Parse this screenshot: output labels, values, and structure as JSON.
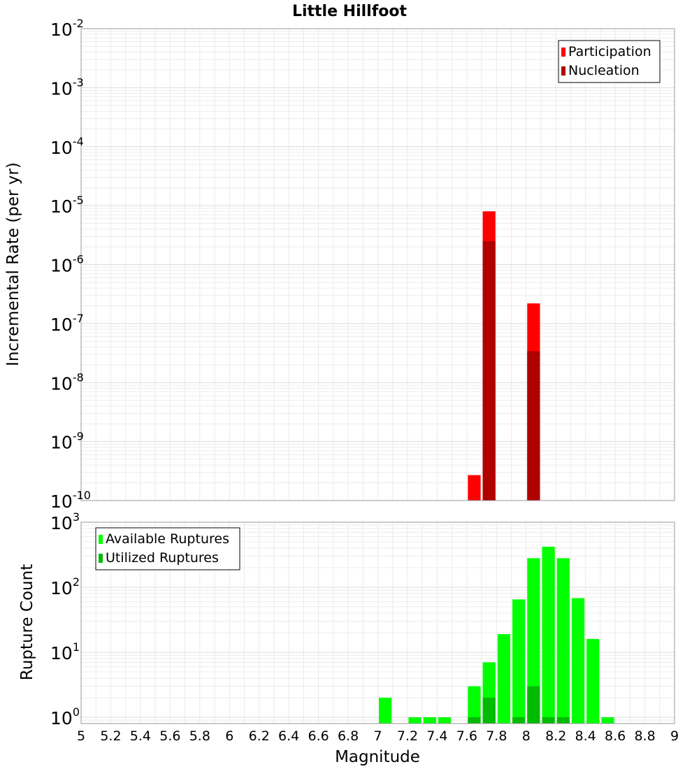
{
  "title": "Little Hillfoot",
  "chart_data": [
    {
      "type": "bar",
      "title": "Little Hillfoot",
      "xlabel": "Magnitude",
      "ylabel": "Incremental Rate (per yr)",
      "yscale": "log",
      "ylim": [
        1e-10,
        0.01
      ],
      "xlim": [
        5,
        9
      ],
      "bin_width": 0.1,
      "grid": true,
      "legend_position": "top-right",
      "y_ticks": [
        {
          "base": "10",
          "exp": "-2"
        },
        {
          "base": "10",
          "exp": "-3"
        },
        {
          "base": "10",
          "exp": "-4"
        },
        {
          "base": "10",
          "exp": "-5"
        },
        {
          "base": "10",
          "exp": "-6"
        },
        {
          "base": "10",
          "exp": "-7"
        },
        {
          "base": "10",
          "exp": "-8"
        },
        {
          "base": "10",
          "exp": "-9"
        },
        {
          "base": "10",
          "exp": "-10"
        }
      ],
      "series": [
        {
          "name": "Participation",
          "color": "#ff0000",
          "x": [
            7.65,
            7.75,
            8.05
          ],
          "values": [
            2.7e-10,
            8e-06,
            2.2e-07
          ]
        },
        {
          "name": "Nucleation",
          "color": "#b00000",
          "x": [
            7.75,
            8.05
          ],
          "values": [
            2.5e-06,
            3.4e-08
          ]
        }
      ]
    },
    {
      "type": "bar",
      "xlabel": "Magnitude",
      "ylabel": "Rupture Count",
      "yscale": "log",
      "ylim": [
        0.8,
        1000
      ],
      "xlim": [
        5,
        9
      ],
      "bin_width": 0.1,
      "grid": true,
      "legend_position": "top-left",
      "x_ticks": [
        "5",
        "5.2",
        "5.4",
        "5.6",
        "5.8",
        "6",
        "6.2",
        "6.4",
        "6.6",
        "6.8",
        "7",
        "7.2",
        "7.4",
        "7.6",
        "7.8",
        "8",
        "8.2",
        "8.4",
        "8.6",
        "8.8",
        "9"
      ],
      "y_ticks": [
        {
          "base": "10",
          "exp": "3"
        },
        {
          "base": "10",
          "exp": "2"
        },
        {
          "base": "10",
          "exp": "1"
        },
        {
          "base": "10",
          "exp": "0"
        }
      ],
      "series": [
        {
          "name": "Available Ruptures",
          "color": "#00ff00",
          "x": [
            7.05,
            7.25,
            7.35,
            7.45,
            7.65,
            7.75,
            7.85,
            7.95,
            8.05,
            8.15,
            8.25,
            8.35,
            8.45,
            8.55
          ],
          "values": [
            2,
            1,
            1,
            1,
            3,
            7,
            19,
            65,
            280,
            420,
            280,
            68,
            16,
            1
          ]
        },
        {
          "name": "Utilized Ruptures",
          "color": "#00bb00",
          "x": [
            7.65,
            7.75,
            7.95,
            8.05,
            8.15,
            8.25
          ],
          "values": [
            1,
            2,
            1,
            3,
            1,
            1
          ]
        }
      ]
    }
  ]
}
